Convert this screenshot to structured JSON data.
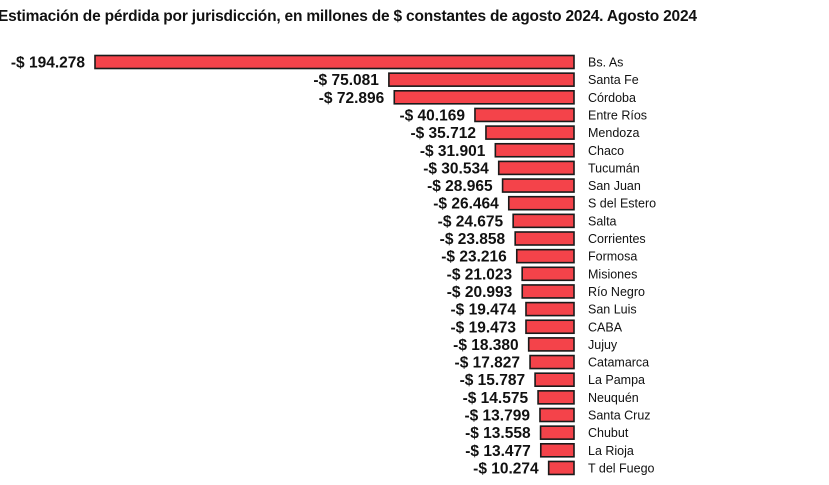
{
  "chart_data": {
    "type": "bar",
    "orientation": "horizontal",
    "title": "Estimación de pérdida por jurisdicción, en millones de $ constantes de agosto 2024. Agosto 2024",
    "xlabel": "",
    "ylabel": "",
    "value_prefix": "-$ ",
    "bar_color": "#f4434a",
    "bar_border_color": "#1a1a1a",
    "grid": false,
    "categories": [
      "Bs. As",
      "Santa Fe",
      "Córdoba",
      "Entre Ríos",
      "Mendoza",
      "Chaco",
      "Tucumán",
      "San Juan",
      "S del Estero",
      "Salta",
      "Corrientes",
      "Formosa",
      "Misiones",
      "Río Negro",
      "San Luis",
      "CABA",
      "Jujuy",
      "Catamarca",
      "La Pampa",
      "Neuquén",
      "Santa Cruz",
      "Chubut",
      "La Rioja",
      "T del Fuego"
    ],
    "values": [
      -194.278,
      -75.081,
      -72.896,
      -40.169,
      -35.712,
      -31.901,
      -30.534,
      -28.965,
      -26.464,
      -24.675,
      -23.858,
      -23.216,
      -21.023,
      -20.993,
      -19.474,
      -19.473,
      -18.38,
      -17.827,
      -15.787,
      -14.575,
      -13.799,
      -13.558,
      -13.477,
      -10.274
    ],
    "value_labels": [
      "-$ 194.278",
      "-$ 75.081",
      "-$ 72.896",
      "-$ 40.169",
      "-$ 35.712",
      "-$ 31.901",
      "-$ 30.534",
      "-$ 28.965",
      "-$ 26.464",
      "-$ 24.675",
      "-$ 23.858",
      "-$ 23.216",
      "-$ 21.023",
      "-$ 20.993",
      "-$ 19.474",
      "-$ 19.473",
      "-$ 18.380",
      "-$ 17.827",
      "-$ 15.787",
      "-$ 14.575",
      "-$ 13.799",
      "-$ 13.558",
      "-$ 13.477",
      "-$ 10.274"
    ],
    "xlim": [
      -194.278,
      0
    ]
  }
}
